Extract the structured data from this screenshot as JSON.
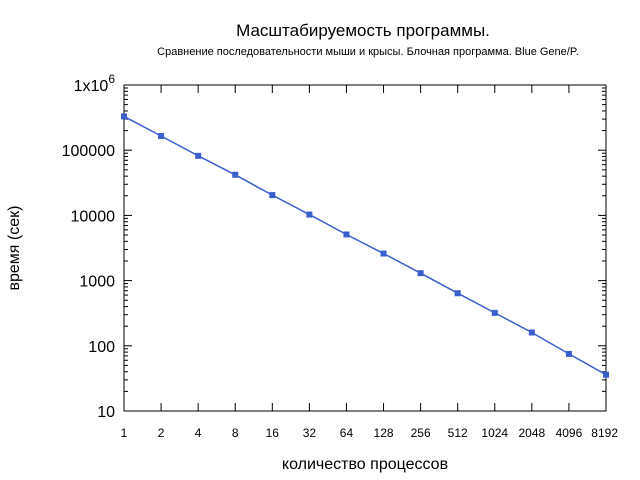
{
  "chart_data": {
    "type": "line",
    "title": "Масштабируемость программы.",
    "subtitle": "Сравнение последовательности мыши и крысы. Блочная программа. Blue Gene/P.",
    "xlabel": "количество процессов",
    "ylabel": "время (сек)",
    "x_scale": "log2",
    "y_scale": "log10",
    "grid": false,
    "x_ticks": [
      "1",
      "2",
      "4",
      "8",
      "16",
      "32",
      "64",
      "128",
      "256",
      "512",
      "1024",
      "2048",
      "4096",
      "8192"
    ],
    "y_ticks": [
      {
        "value": 10,
        "label": "10"
      },
      {
        "value": 100,
        "label": "100"
      },
      {
        "value": 1000,
        "label": "1000"
      },
      {
        "value": 10000,
        "label": "10000"
      },
      {
        "value": 100000,
        "label": "100000"
      },
      {
        "value": 1000000,
        "label_base": "1x10",
        "label_exp": "6"
      }
    ],
    "xlim": [
      1,
      8192
    ],
    "ylim": [
      10,
      1000000
    ],
    "series": [
      {
        "color": "#3a5fcd",
        "x": [
          1,
          2,
          4,
          8,
          16,
          32,
          64,
          128,
          256,
          512,
          1024,
          2048,
          4096,
          8192
        ],
        "values": [
          330000,
          165000,
          82000,
          42000,
          20500,
          10300,
          5100,
          2600,
          1300,
          640,
          320,
          160,
          75,
          36
        ]
      }
    ]
  }
}
